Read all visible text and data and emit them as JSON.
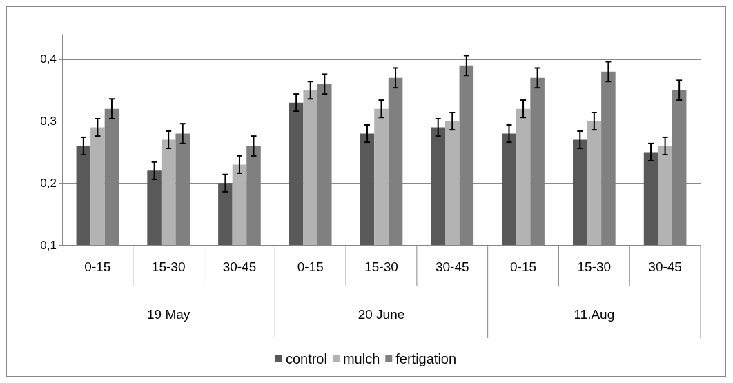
{
  "chart_data": {
    "type": "bar",
    "categories": [
      "0-15",
      "15-30",
      "30-45",
      "0-15",
      "15-30",
      "30-45",
      "0-15",
      "15-30",
      "30-45"
    ],
    "series": [
      {
        "name": "control",
        "color": "#595959",
        "values": [
          0.26,
          0.22,
          0.2,
          0.33,
          0.28,
          0.29,
          0.28,
          0.27,
          0.25
        ],
        "errors": [
          0.014,
          0.014,
          0.014,
          0.014,
          0.014,
          0.014,
          0.014,
          0.014,
          0.014
        ]
      },
      {
        "name": "mulch",
        "color": "#b3b3b3",
        "values": [
          0.29,
          0.27,
          0.23,
          0.35,
          0.32,
          0.3,
          0.32,
          0.3,
          0.26
        ],
        "errors": [
          0.014,
          0.014,
          0.014,
          0.014,
          0.014,
          0.014,
          0.014,
          0.014,
          0.014
        ]
      },
      {
        "name": "fertigation",
        "color": "#808080",
        "values": [
          0.32,
          0.28,
          0.26,
          0.36,
          0.37,
          0.39,
          0.37,
          0.38,
          0.35
        ],
        "errors": [
          0.016,
          0.016,
          0.016,
          0.016,
          0.016,
          0.016,
          0.016,
          0.016,
          0.016
        ]
      }
    ],
    "annotations": [
      "19 May",
      "20 June",
      "11.Aug"
    ],
    "ylim": [
      0.1,
      0.44
    ],
    "yticks": [
      {
        "value": 0.1,
        "label": "0,1"
      },
      {
        "value": 0.2,
        "label": "0,2"
      },
      {
        "value": 0.3,
        "label": "0,3"
      },
      {
        "value": 0.4,
        "label": "0,4"
      }
    ],
    "grid": "y",
    "legend": "bottom"
  }
}
